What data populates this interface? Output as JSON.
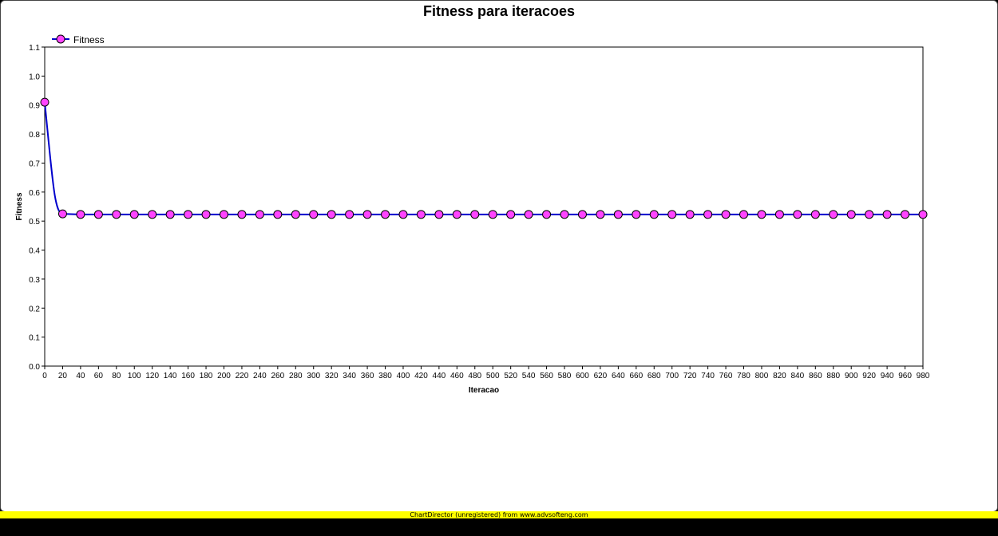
{
  "chart_data": {
    "type": "line",
    "title": "Fitness para iteracoes",
    "xlabel": "Iteracao",
    "ylabel": "Fitness",
    "xlim": [
      0,
      980
    ],
    "ylim": [
      0,
      1.1
    ],
    "x_ticks": [
      "0",
      "20",
      "40",
      "60",
      "80",
      "100",
      "120",
      "140",
      "160",
      "180",
      "200",
      "220",
      "240",
      "260",
      "280",
      "300",
      "320",
      "340",
      "360",
      "380",
      "400",
      "420",
      "440",
      "460",
      "480",
      "500",
      "520",
      "540",
      "560",
      "580",
      "600",
      "620",
      "640",
      "660",
      "680",
      "700",
      "720",
      "740",
      "760",
      "780",
      "800",
      "820",
      "840",
      "860",
      "880",
      "900",
      "920",
      "940",
      "960",
      "980"
    ],
    "y_ticks": [
      "0.0",
      "0.1",
      "0.2",
      "0.3",
      "0.4",
      "0.5",
      "0.6",
      "0.7",
      "0.8",
      "0.9",
      "1.0",
      "1.1"
    ],
    "legend_position": "top-left",
    "grid": false,
    "series": [
      {
        "name": "Fitness",
        "line_color": "#0000cc",
        "marker_color": "#ff44ff",
        "x": [
          0,
          20,
          40,
          60,
          80,
          100,
          120,
          140,
          160,
          180,
          200,
          220,
          240,
          260,
          280,
          300,
          320,
          340,
          360,
          380,
          400,
          420,
          440,
          460,
          480,
          500,
          520,
          540,
          560,
          580,
          600,
          620,
          640,
          660,
          680,
          700,
          720,
          740,
          760,
          780,
          800,
          820,
          840,
          860,
          880,
          900,
          920,
          940,
          960,
          980
        ],
        "y": [
          0.91,
          0.525,
          0.523,
          0.523,
          0.523,
          0.523,
          0.523,
          0.523,
          0.523,
          0.523,
          0.523,
          0.523,
          0.523,
          0.523,
          0.523,
          0.523,
          0.523,
          0.523,
          0.523,
          0.523,
          0.523,
          0.523,
          0.523,
          0.523,
          0.523,
          0.523,
          0.523,
          0.523,
          0.523,
          0.523,
          0.523,
          0.523,
          0.523,
          0.523,
          0.523,
          0.523,
          0.523,
          0.523,
          0.523,
          0.523,
          0.523,
          0.523,
          0.523,
          0.523,
          0.523,
          0.523,
          0.523,
          0.523,
          0.523,
          0.523
        ]
      }
    ]
  },
  "banner_text": "ChartDirector (unregistered) from www.advsofteng.com",
  "colors": {
    "banner": "#ffff00",
    "background": "#ffffff"
  }
}
